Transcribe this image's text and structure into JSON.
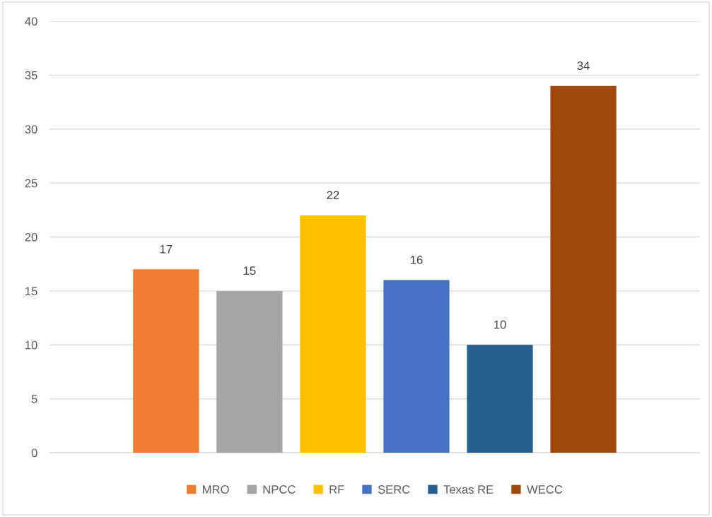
{
  "chart_data": {
    "type": "bar",
    "categories": [
      null
    ],
    "series": [
      {
        "name": "MRO",
        "color": "#ed7d31",
        "values": [
          17
        ]
      },
      {
        "name": "NPCC",
        "color": "#a5a5a5",
        "values": [
          15
        ]
      },
      {
        "name": "RF",
        "color": "#ffc000",
        "values": [
          22
        ]
      },
      {
        "name": "SERC",
        "color": "#4472c4",
        "values": [
          16
        ]
      },
      {
        "name": "Texas RE",
        "color": "#255e91",
        "values": [
          10
        ]
      },
      {
        "name": "WECC",
        "color": "#9e480e",
        "values": [
          34
        ]
      }
    ],
    "ylim": [
      0,
      40
    ],
    "yticks": [
      0,
      5,
      10,
      15,
      20,
      25,
      30,
      35,
      40
    ],
    "grid": "y",
    "legend": "bottom",
    "data_labels": true,
    "tick_labels": "y"
  }
}
